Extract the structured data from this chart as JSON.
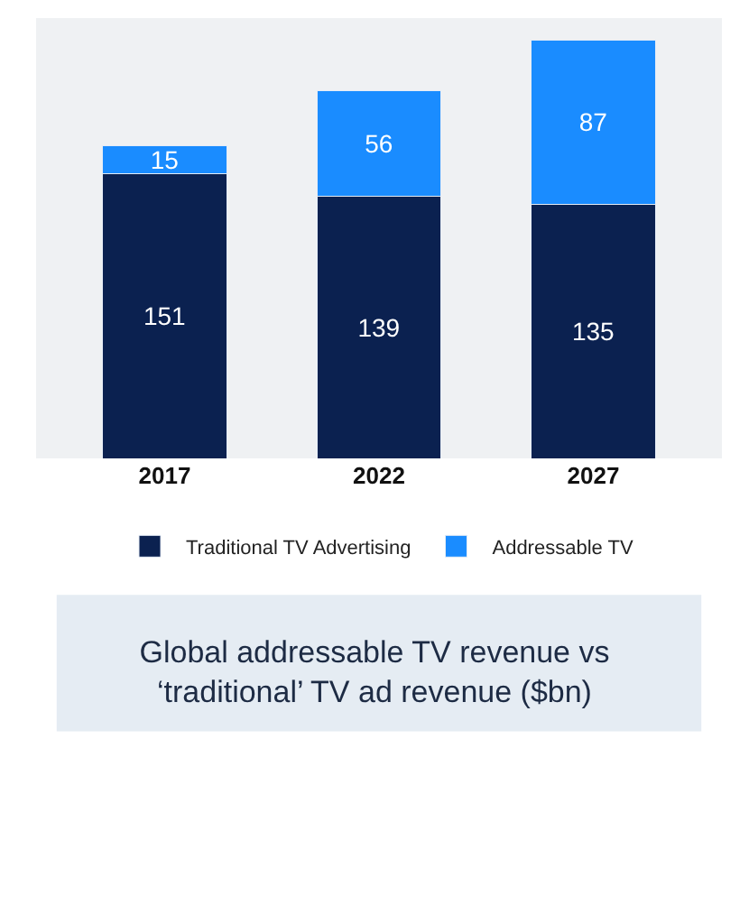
{
  "chart_data": {
    "type": "bar",
    "stacked": true,
    "data_labels": true,
    "legend": "bottom",
    "title": "Global addressable TV revenue vs ‘traditional’ TV ad revenue ($bn)",
    "categories": [
      "2017",
      "2022",
      "2027"
    ],
    "series": [
      {
        "name": "Traditional TV Advertising",
        "color": "#0b2150",
        "values": [
          151,
          139,
          135
        ]
      },
      {
        "name": "Addressable TV",
        "color": "#1a8cff",
        "values": [
          15,
          56,
          87
        ]
      }
    ]
  }
}
